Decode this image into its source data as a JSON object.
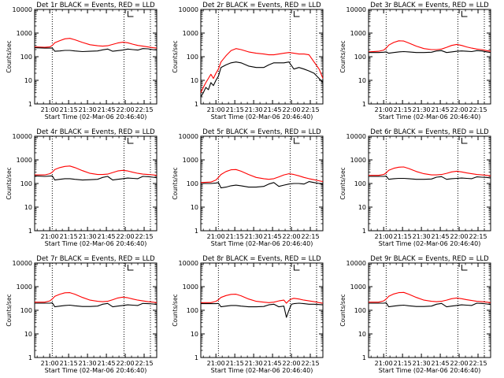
{
  "window": {
    "background": "#ffffff"
  },
  "colors": {
    "events": "#000000",
    "lld": "#ff0000",
    "axes": "#000000"
  },
  "chart_data": [
    {
      "type": "line",
      "title": "Det 1r BLACK = Events, RED = LLD",
      "xlabel": "Start Time (02-Mar-06 20:46:40)",
      "ylabel": "Counts/sec",
      "y_scale": "log",
      "ylim": [
        1,
        10000
      ],
      "y_ticks": [
        "1",
        "10",
        "100",
        "1000",
        "10000"
      ],
      "x_tick_labels": [
        "21:00",
        "21:15",
        "21:30",
        "21:45",
        "22:00",
        "22:15"
      ],
      "x_tick_minutes": [
        780,
        795,
        810,
        825,
        840,
        855
      ],
      "xlim_minutes": [
        768,
        865
      ],
      "reference_lines_minutes": [
        782,
        839,
        860
      ],
      "x_minutes": [
        768,
        776,
        780,
        782,
        784,
        788,
        792,
        796,
        800,
        806,
        812,
        818,
        822,
        826,
        830,
        834,
        838,
        842,
        846,
        850,
        854,
        858,
        862,
        865
      ],
      "series": [
        {
          "name": "BLACK = Events",
          "values": [
            240,
            230,
            230,
            235,
            170,
            175,
            185,
            185,
            175,
            165,
            170,
            175,
            195,
            210,
            170,
            180,
            190,
            210,
            200,
            190,
            220,
            215,
            200,
            190
          ]
        },
        {
          "name": "RED = LLD",
          "values": [
            260,
            250,
            260,
            300,
            390,
            480,
            570,
            600,
            520,
            400,
            320,
            290,
            280,
            290,
            330,
            380,
            410,
            390,
            340,
            300,
            280,
            260,
            240,
            230
          ]
        }
      ]
    },
    {
      "type": "line",
      "title": "Det 2r BLACK = Events, RED = LLD",
      "xlabel": "Start Time (02-Mar-06 20:46:40)",
      "ylabel": "Counts/sec",
      "y_scale": "log",
      "ylim": [
        1,
        10000
      ],
      "y_ticks": [
        "1",
        "10",
        "100",
        "1000",
        "10000"
      ],
      "x_tick_labels": [
        "21:00",
        "21:15",
        "21:30",
        "21:45",
        "22:00",
        "22:15"
      ],
      "x_tick_minutes": [
        780,
        795,
        810,
        825,
        840,
        855
      ],
      "xlim_minutes": [
        768,
        865
      ],
      "reference_lines_minutes": [
        782,
        839,
        860
      ],
      "x_minutes": [
        768,
        770,
        772,
        774,
        776,
        778,
        780,
        782,
        784,
        788,
        792,
        796,
        800,
        806,
        812,
        818,
        822,
        826,
        830,
        834,
        838,
        842,
        846,
        850,
        854,
        858,
        862,
        865
      ],
      "series": [
        {
          "name": "BLACK = Events",
          "values": [
            2,
            3,
            5,
            4,
            8,
            6,
            10,
            15,
            35,
            45,
            55,
            60,
            55,
            40,
            35,
            35,
            45,
            55,
            55,
            55,
            60,
            30,
            35,
            30,
            25,
            20,
            12,
            8
          ]
        },
        {
          "name": "RED = LLD",
          "values": [
            3,
            5,
            8,
            12,
            18,
            12,
            20,
            30,
            60,
            110,
            180,
            220,
            200,
            160,
            140,
            130,
            120,
            120,
            130,
            140,
            150,
            140,
            130,
            130,
            120,
            60,
            30,
            12
          ]
        }
      ]
    },
    {
      "type": "line",
      "title": "Det 3r BLACK = Events, RED = LLD",
      "xlabel": "Start Time (02-Mar-06 20:46:40)",
      "ylabel": "Counts/sec",
      "y_scale": "log",
      "ylim": [
        1,
        10000
      ],
      "y_ticks": [
        "1",
        "10",
        "100",
        "1000",
        "10000"
      ],
      "x_tick_labels": [
        "21:00",
        "21:15",
        "21:30",
        "21:45",
        "22:00",
        "22:15"
      ],
      "x_tick_minutes": [
        780,
        795,
        810,
        825,
        840,
        855
      ],
      "xlim_minutes": [
        768,
        865
      ],
      "reference_lines_minutes": [
        782,
        839,
        860
      ],
      "x_minutes": [
        768,
        776,
        780,
        782,
        784,
        788,
        792,
        796,
        800,
        806,
        812,
        818,
        822,
        826,
        830,
        834,
        838,
        842,
        846,
        850,
        854,
        858,
        862,
        865
      ],
      "series": [
        {
          "name": "BLACK = Events",
          "values": [
            150,
            150,
            155,
            160,
            140,
            150,
            160,
            165,
            160,
            150,
            150,
            155,
            175,
            180,
            150,
            160,
            170,
            175,
            170,
            165,
            180,
            175,
            160,
            150
          ]
        },
        {
          "name": "RED = LLD",
          "values": [
            160,
            170,
            190,
            230,
            310,
            400,
            470,
            460,
            380,
            280,
            220,
            200,
            200,
            210,
            250,
            300,
            330,
            300,
            260,
            230,
            210,
            200,
            180,
            170
          ]
        }
      ]
    },
    {
      "type": "line",
      "title": "Det 4r BLACK = Events, RED = LLD",
      "xlabel": "Start Time (02-Mar-06 20:46:40)",
      "ylabel": "Counts/sec",
      "y_scale": "log",
      "ylim": [
        1,
        10000
      ],
      "y_ticks": [
        "1",
        "10",
        "100",
        "1000",
        "10000"
      ],
      "x_tick_labels": [
        "21:00",
        "21:15",
        "21:30",
        "21:45",
        "22:00",
        "22:15"
      ],
      "x_tick_minutes": [
        780,
        795,
        810,
        825,
        840,
        855
      ],
      "xlim_minutes": [
        768,
        865
      ],
      "reference_lines_minutes": [
        782,
        839,
        860
      ],
      "x_minutes": [
        768,
        776,
        780,
        782,
        784,
        788,
        792,
        796,
        800,
        806,
        812,
        818,
        822,
        826,
        830,
        834,
        838,
        842,
        846,
        850,
        854,
        858,
        862,
        865
      ],
      "series": [
        {
          "name": "BLACK = Events",
          "values": [
            210,
            200,
            205,
            210,
            140,
            150,
            160,
            160,
            150,
            140,
            145,
            150,
            180,
            200,
            140,
            150,
            160,
            170,
            165,
            160,
            200,
            195,
            185,
            175
          ]
        },
        {
          "name": "RED = LLD",
          "values": [
            230,
            230,
            260,
            300,
            390,
            470,
            530,
            550,
            470,
            350,
            270,
            240,
            240,
            250,
            290,
            340,
            360,
            340,
            300,
            270,
            250,
            240,
            230,
            220
          ]
        }
      ]
    },
    {
      "type": "line",
      "title": "Det 5r BLACK = Events, RED = LLD",
      "xlabel": "Start Time (02-Mar-06 20:46:40)",
      "ylabel": "Counts/sec",
      "y_scale": "log",
      "ylim": [
        1,
        10000
      ],
      "y_ticks": [
        "1",
        "10",
        "100",
        "1000",
        "10000"
      ],
      "x_tick_labels": [
        "21:00",
        "21:15",
        "21:30",
        "21:45",
        "22:00",
        "22:15"
      ],
      "x_tick_minutes": [
        780,
        795,
        810,
        825,
        840,
        855
      ],
      "xlim_minutes": [
        768,
        865
      ],
      "reference_lines_minutes": [
        782,
        839,
        860
      ],
      "x_minutes": [
        768,
        776,
        780,
        782,
        784,
        788,
        792,
        796,
        800,
        806,
        812,
        818,
        822,
        826,
        830,
        834,
        838,
        842,
        846,
        850,
        854,
        858,
        862,
        865
      ],
      "series": [
        {
          "name": "BLACK = Events",
          "values": [
            100,
            100,
            105,
            110,
            65,
            70,
            80,
            85,
            80,
            70,
            70,
            75,
            95,
            110,
            75,
            85,
            95,
            100,
            100,
            95,
            120,
            110,
            100,
            90
          ]
        },
        {
          "name": "RED = LLD",
          "values": [
            110,
            115,
            140,
            180,
            240,
            320,
            380,
            390,
            330,
            240,
            180,
            160,
            150,
            160,
            190,
            230,
            260,
            240,
            210,
            180,
            160,
            145,
            130,
            120
          ]
        }
      ]
    },
    {
      "type": "line",
      "title": "Det 6r BLACK = Events, RED = LLD",
      "xlabel": "Start Time (02-Mar-06 20:46:40)",
      "ylabel": "Counts/sec",
      "y_scale": "log",
      "ylim": [
        1,
        10000
      ],
      "y_ticks": [
        "1",
        "10",
        "100",
        "1000",
        "10000"
      ],
      "x_tick_labels": [
        "21:00",
        "21:15",
        "21:30",
        "21:45",
        "22:00",
        "22:15"
      ],
      "x_tick_minutes": [
        780,
        795,
        810,
        825,
        840,
        855
      ],
      "xlim_minutes": [
        768,
        865
      ],
      "reference_lines_minutes": [
        782,
        839,
        860
      ],
      "x_minutes": [
        768,
        776,
        780,
        782,
        784,
        788,
        792,
        796,
        800,
        806,
        812,
        818,
        822,
        826,
        830,
        834,
        838,
        842,
        846,
        850,
        854,
        858,
        862,
        865
      ],
      "series": [
        {
          "name": "BLACK = Events",
          "values": [
            200,
            200,
            200,
            205,
            150,
            160,
            165,
            165,
            160,
            150,
            150,
            155,
            185,
            195,
            150,
            160,
            165,
            170,
            165,
            160,
            190,
            185,
            180,
            170
          ]
        },
        {
          "name": "RED = LLD",
          "values": [
            220,
            220,
            240,
            280,
            360,
            440,
            490,
            500,
            430,
            320,
            260,
            230,
            230,
            240,
            270,
            310,
            330,
            310,
            280,
            260,
            240,
            230,
            220,
            210
          ]
        }
      ]
    },
    {
      "type": "line",
      "title": "Det 7r BLACK = Events, RED = LLD",
      "xlabel": "Start Time (02-Mar-06 20:46:40)",
      "ylabel": "Counts/sec",
      "y_scale": "log",
      "ylim": [
        1,
        10000
      ],
      "y_ticks": [
        "1",
        "10",
        "100",
        "1000",
        "10000"
      ],
      "x_tick_labels": [
        "21:00",
        "21:15",
        "21:30",
        "21:45",
        "22:00",
        "22:15"
      ],
      "x_tick_minutes": [
        780,
        795,
        810,
        825,
        840,
        855
      ],
      "xlim_minutes": [
        768,
        865
      ],
      "reference_lines_minutes": [
        782,
        839,
        860
      ],
      "x_minutes": [
        768,
        776,
        780,
        782,
        784,
        788,
        792,
        796,
        800,
        806,
        812,
        818,
        822,
        826,
        830,
        834,
        838,
        842,
        846,
        850,
        854,
        858,
        862,
        865
      ],
      "series": [
        {
          "name": "BLACK = Events",
          "values": [
            200,
            200,
            200,
            205,
            140,
            150,
            160,
            165,
            155,
            145,
            145,
            150,
            180,
            195,
            140,
            150,
            160,
            170,
            165,
            160,
            195,
            190,
            185,
            175
          ]
        },
        {
          "name": "RED = LLD",
          "values": [
            220,
            220,
            250,
            300,
            390,
            480,
            550,
            560,
            480,
            350,
            270,
            240,
            230,
            240,
            280,
            330,
            360,
            340,
            300,
            270,
            250,
            230,
            220,
            210
          ]
        }
      ]
    },
    {
      "type": "line",
      "title": "Det 8r BLACK = Events, RED = LLD",
      "xlabel": "Start Time (02-Mar-06 20:46:40)",
      "ylabel": "Counts/sec",
      "y_scale": "log",
      "ylim": [
        1,
        10000
      ],
      "y_ticks": [
        "1",
        "10",
        "100",
        "1000",
        "10000"
      ],
      "x_tick_labels": [
        "21:00",
        "21:15",
        "21:30",
        "21:45",
        "22:00",
        "22:15"
      ],
      "x_tick_minutes": [
        780,
        795,
        810,
        825,
        840,
        855
      ],
      "xlim_minutes": [
        768,
        865
      ],
      "reference_lines_minutes": [
        782,
        839,
        860
      ],
      "x_minutes": [
        768,
        776,
        780,
        782,
        784,
        788,
        792,
        796,
        800,
        806,
        812,
        818,
        822,
        826,
        830,
        834,
        836,
        838,
        840,
        842,
        846,
        850,
        854,
        858,
        862,
        865
      ],
      "series": [
        {
          "name": "BLACK = Events",
          "values": [
            190,
            190,
            190,
            195,
            140,
            150,
            160,
            160,
            150,
            140,
            140,
            145,
            170,
            180,
            140,
            150,
            50,
            100,
            180,
            190,
            200,
            190,
            180,
            180,
            175,
            170
          ]
        },
        {
          "name": "RED = LLD",
          "values": [
            210,
            210,
            240,
            280,
            350,
            420,
            470,
            480,
            410,
            300,
            240,
            220,
            210,
            220,
            250,
            270,
            200,
            260,
            300,
            320,
            300,
            270,
            250,
            230,
            210,
            200
          ]
        }
      ]
    },
    {
      "type": "line",
      "title": "Det 9r BLACK = Events, RED = LLD",
      "xlabel": "Start Time (02-Mar-06 20:46:40)",
      "ylabel": "Counts/sec",
      "y_scale": "log",
      "ylim": [
        1,
        10000
      ],
      "y_ticks": [
        "1",
        "10",
        "100",
        "1000",
        "10000"
      ],
      "x_tick_labels": [
        "21:00",
        "21:15",
        "21:30",
        "21:45",
        "22:00",
        "22:15"
      ],
      "x_tick_minutes": [
        780,
        795,
        810,
        825,
        840,
        855
      ],
      "xlim_minutes": [
        768,
        865
      ],
      "reference_lines_minutes": [
        782,
        839,
        860
      ],
      "x_minutes": [
        768,
        776,
        780,
        782,
        784,
        788,
        792,
        796,
        800,
        806,
        812,
        818,
        822,
        826,
        830,
        834,
        838,
        842,
        846,
        850,
        854,
        858,
        862,
        865
      ],
      "series": [
        {
          "name": "BLACK = Events",
          "values": [
            200,
            200,
            200,
            205,
            140,
            150,
            160,
            165,
            155,
            145,
            145,
            150,
            180,
            195,
            140,
            150,
            160,
            170,
            165,
            160,
            200,
            195,
            185,
            175
          ]
        },
        {
          "name": "RED = LLD",
          "values": [
            220,
            220,
            250,
            300,
            390,
            490,
            560,
            570,
            480,
            350,
            270,
            240,
            230,
            240,
            270,
            310,
            330,
            310,
            280,
            260,
            240,
            230,
            220,
            210
          ]
        }
      ]
    }
  ]
}
